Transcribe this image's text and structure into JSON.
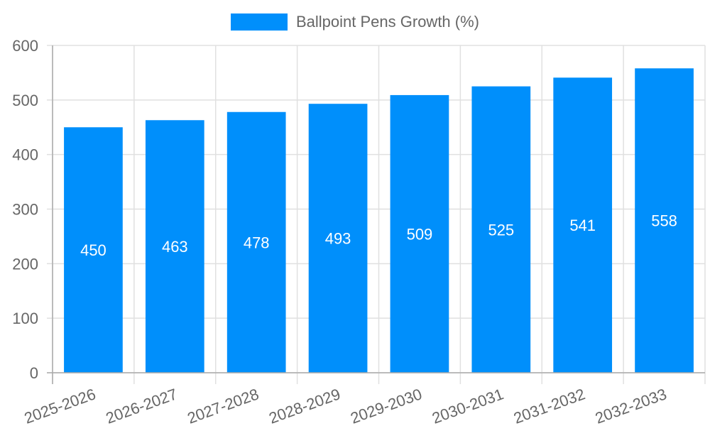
{
  "chart_data": {
    "type": "bar",
    "title": "",
    "legend": [
      {
        "label": "Ballpoint Pens Growth (%)",
        "color": "#008ffb"
      }
    ],
    "legend_position": "top",
    "categories": [
      "2025-2026",
      "2026-2027",
      "2027-2028",
      "2028-2029",
      "2029-2030",
      "2030-2031",
      "2031-2032",
      "2032-2033"
    ],
    "series": [
      {
        "name": "Ballpoint Pens Growth (%)",
        "values": [
          450,
          463,
          478,
          493,
          509,
          525,
          541,
          558
        ],
        "color": "#008ffb"
      }
    ],
    "data_labels": true,
    "xlabel": "",
    "ylabel": "",
    "ylim": [
      0,
      600
    ],
    "yticks": [
      0,
      100,
      200,
      300,
      400,
      500,
      600
    ],
    "grid": true,
    "x_tick_rotation": -20
  },
  "legend": {
    "label": "Ballpoint Pens Growth (%)"
  }
}
